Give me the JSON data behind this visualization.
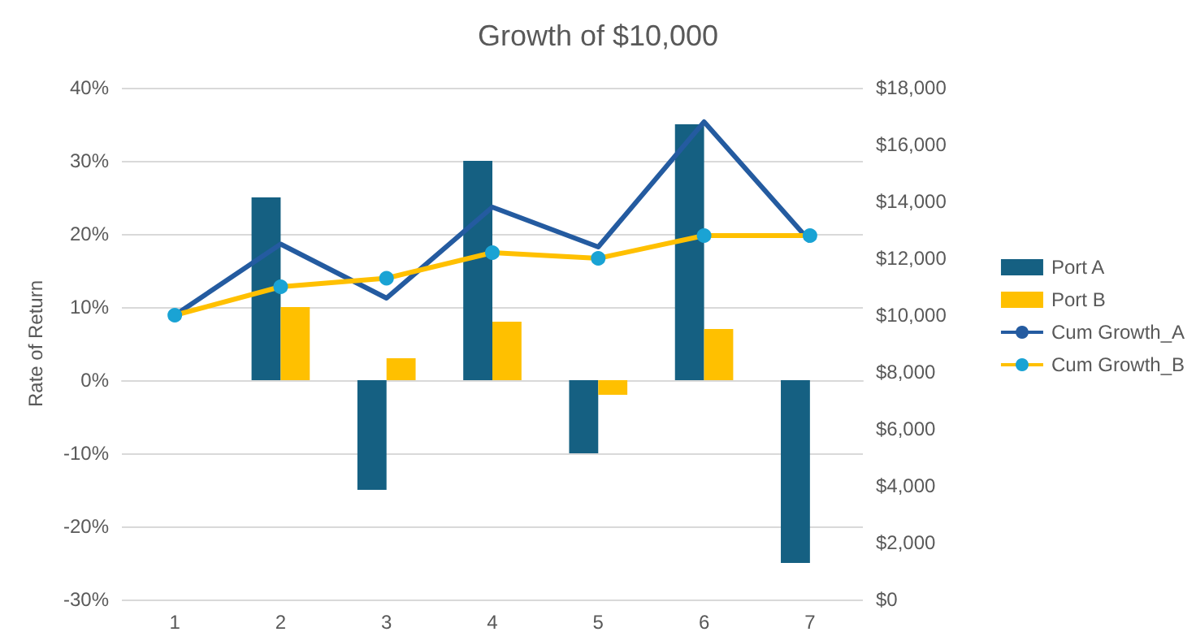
{
  "chart_data": {
    "type": "bar",
    "title": "Growth of $10,000",
    "ylabel": "Rate of Return",
    "categories": [
      "1",
      "2",
      "3",
      "4",
      "5",
      "6",
      "7"
    ],
    "series": [
      {
        "name": "Port A",
        "color": "#156082",
        "values": [
          null,
          25,
          -15,
          30,
          -10,
          35,
          -25
        ]
      },
      {
        "name": "Port B",
        "color": "#ffc000",
        "values": [
          null,
          10,
          3,
          8,
          -2,
          7,
          0
        ]
      },
      {
        "name": "Cum Growth_A",
        "type": "line",
        "axis": "y2",
        "color": "#245ba0",
        "marker": "none",
        "values": [
          10000,
          12500,
          10600,
          13800,
          12400,
          16800,
          12600
        ]
      },
      {
        "name": "Cum Growth_B",
        "type": "line",
        "axis": "y2",
        "color": "#ffc000",
        "marker": "circle",
        "values": [
          10000,
          11000,
          11300,
          12200,
          12000,
          12800,
          12800
        ]
      }
    ],
    "ylim": [
      -30,
      40
    ],
    "yticks": [
      {
        "value": -30,
        "label": "-30%"
      },
      {
        "value": -20,
        "label": "-20%"
      },
      {
        "value": -10,
        "label": "-10%"
      },
      {
        "value": 0,
        "label": "0%"
      },
      {
        "value": 10,
        "label": "10%"
      },
      {
        "value": 20,
        "label": "20%"
      },
      {
        "value": 30,
        "label": "30%"
      },
      {
        "value": 40,
        "label": "40%"
      }
    ],
    "y2lim": [
      0,
      18000
    ],
    "y2ticks": [
      {
        "value": 0,
        "label": "$0"
      },
      {
        "value": 2000,
        "label": "$2,000"
      },
      {
        "value": 4000,
        "label": "$4,000"
      },
      {
        "value": 6000,
        "label": "$6,000"
      },
      {
        "value": 8000,
        "label": "$8,000"
      },
      {
        "value": 10000,
        "label": "$10,000"
      },
      {
        "value": 12000,
        "label": "$12,000"
      },
      {
        "value": 14000,
        "label": "$14,000"
      },
      {
        "value": 16000,
        "label": "$16,000"
      },
      {
        "value": 18000,
        "label": "$18,000"
      }
    ],
    "grid": "y",
    "legend": "right"
  }
}
